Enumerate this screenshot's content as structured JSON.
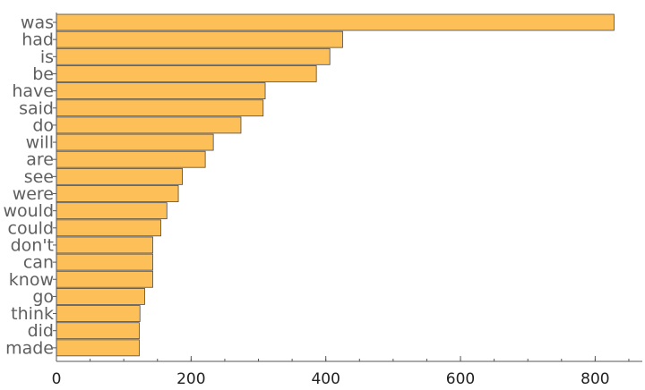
{
  "chart_data": {
    "type": "bar",
    "orientation": "horizontal",
    "title": "",
    "xlabel": "",
    "ylabel": "",
    "categories": [
      "was",
      "had",
      "is",
      "be",
      "have",
      "said",
      "do",
      "will",
      "are",
      "see",
      "were",
      "would",
      "could",
      "don't",
      "can",
      "know",
      "go",
      "think",
      "did",
      "made"
    ],
    "values": [
      828,
      425,
      406,
      386,
      310,
      307,
      274,
      233,
      221,
      187,
      181,
      164,
      155,
      143,
      143,
      143,
      131,
      124,
      123,
      123
    ],
    "xlim": [
      0,
      870
    ],
    "xticks": [
      0,
      200,
      400,
      600,
      800
    ],
    "xticks_minor_step": 50,
    "grid": false,
    "legend": "none",
    "colors": {
      "bar_fill": "#fdbf57",
      "bar_stroke": "#4a4a4a",
      "axis": "#555555"
    }
  }
}
